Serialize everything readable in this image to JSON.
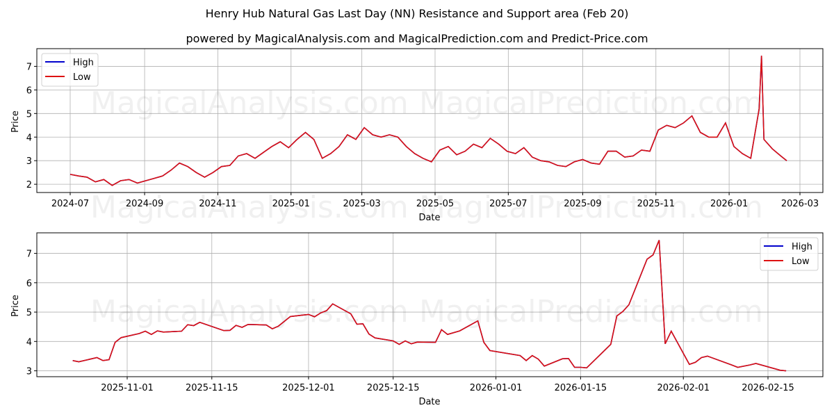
{
  "header": {
    "title": "Henry Hub Natural Gas Last Day  (NN) Resistance and Support area (Feb 20)",
    "subtitle": "powered by MagicalAnalysis.com and MagicalPrediction.com and Predict-Price.com"
  },
  "watermarks": [
    "MagicalAnalysis.com",
    "MagicalPrediction.com"
  ],
  "colors": {
    "high": "#0000cc",
    "low": "#dd1111",
    "grid": "#b0b0b0"
  },
  "chart_data": [
    {
      "type": "line",
      "title": "",
      "xlabel": "Date",
      "ylabel": "Price",
      "ylim": [
        1.65,
        7.75
      ],
      "yticks": [
        2,
        3,
        4,
        5,
        6,
        7
      ],
      "xticks": [
        "2024-07",
        "2024-09",
        "2024-11",
        "2025-01",
        "2025-03",
        "2025-05",
        "2025-07",
        "2025-09",
        "2025-11",
        "2026-01",
        "2026-03"
      ],
      "grid": true,
      "legend": {
        "position": "upper left",
        "entries": [
          "High",
          "Low"
        ]
      },
      "x": [
        "2024-07-01",
        "2024-07-08",
        "2024-07-15",
        "2024-07-22",
        "2024-07-29",
        "2024-08-05",
        "2024-08-12",
        "2024-08-19",
        "2024-08-26",
        "2024-09-02",
        "2024-09-09",
        "2024-09-16",
        "2024-09-23",
        "2024-09-30",
        "2024-10-07",
        "2024-10-14",
        "2024-10-21",
        "2024-10-28",
        "2024-11-04",
        "2024-11-11",
        "2024-11-18",
        "2024-11-25",
        "2024-12-02",
        "2024-12-09",
        "2024-12-16",
        "2024-12-23",
        "2024-12-30",
        "2025-01-06",
        "2025-01-13",
        "2025-01-20",
        "2025-01-27",
        "2025-02-03",
        "2025-02-10",
        "2025-02-17",
        "2025-02-24",
        "2025-03-03",
        "2025-03-10",
        "2025-03-17",
        "2025-03-24",
        "2025-03-31",
        "2025-04-07",
        "2025-04-14",
        "2025-04-21",
        "2025-04-28",
        "2025-05-05",
        "2025-05-12",
        "2025-05-19",
        "2025-05-26",
        "2025-06-02",
        "2025-06-09",
        "2025-06-16",
        "2025-06-23",
        "2025-06-30",
        "2025-07-07",
        "2025-07-14",
        "2025-07-21",
        "2025-07-28",
        "2025-08-04",
        "2025-08-11",
        "2025-08-18",
        "2025-08-25",
        "2025-09-01",
        "2025-09-08",
        "2025-09-15",
        "2025-09-22",
        "2025-09-29",
        "2025-10-06",
        "2025-10-13",
        "2025-10-20",
        "2025-10-27",
        "2025-11-03",
        "2025-11-10",
        "2025-11-17",
        "2025-11-24",
        "2025-12-01",
        "2025-12-08",
        "2025-12-15",
        "2025-12-22",
        "2025-12-29",
        "2026-01-05",
        "2026-01-12",
        "2026-01-19",
        "2026-01-26",
        "2026-01-28",
        "2026-01-30",
        "2026-02-06",
        "2026-02-13",
        "2026-02-18"
      ],
      "series": [
        {
          "name": "High",
          "values": [
            2.42,
            2.35,
            2.3,
            2.1,
            2.2,
            1.95,
            2.15,
            2.2,
            2.05,
            2.15,
            2.25,
            2.35,
            2.6,
            2.9,
            2.75,
            2.5,
            2.3,
            2.5,
            2.75,
            2.8,
            3.2,
            3.3,
            3.1,
            3.35,
            3.6,
            3.8,
            3.55,
            3.9,
            4.2,
            3.9,
            3.1,
            3.3,
            3.6,
            4.1,
            3.9,
            4.4,
            4.1,
            4.0,
            4.1,
            4.0,
            3.6,
            3.3,
            3.1,
            2.95,
            3.45,
            3.6,
            3.25,
            3.4,
            3.7,
            3.55,
            3.95,
            3.7,
            3.4,
            3.3,
            3.55,
            3.15,
            3.0,
            2.95,
            2.8,
            2.75,
            2.95,
            3.05,
            2.9,
            2.85,
            3.4,
            3.4,
            3.15,
            3.2,
            3.45,
            3.4,
            4.3,
            4.5,
            4.4,
            4.6,
            4.9,
            4.2,
            4.0,
            4.0,
            4.6,
            3.6,
            3.3,
            3.1,
            5.2,
            7.45,
            3.9,
            3.5,
            3.2,
            3.0
          ]
        },
        {
          "name": "Low",
          "values": [
            2.42,
            2.35,
            2.3,
            2.1,
            2.2,
            1.95,
            2.15,
            2.2,
            2.05,
            2.15,
            2.25,
            2.35,
            2.6,
            2.9,
            2.75,
            2.5,
            2.3,
            2.5,
            2.75,
            2.8,
            3.2,
            3.3,
            3.1,
            3.35,
            3.6,
            3.8,
            3.55,
            3.9,
            4.2,
            3.9,
            3.1,
            3.3,
            3.6,
            4.1,
            3.9,
            4.4,
            4.1,
            4.0,
            4.1,
            4.0,
            3.6,
            3.3,
            3.1,
            2.95,
            3.45,
            3.6,
            3.25,
            3.4,
            3.7,
            3.55,
            3.95,
            3.7,
            3.4,
            3.3,
            3.55,
            3.15,
            3.0,
            2.95,
            2.8,
            2.75,
            2.95,
            3.05,
            2.9,
            2.85,
            3.4,
            3.4,
            3.15,
            3.2,
            3.45,
            3.4,
            4.3,
            4.5,
            4.4,
            4.6,
            4.9,
            4.2,
            4.0,
            4.0,
            4.6,
            3.6,
            3.3,
            3.1,
            5.2,
            7.45,
            3.9,
            3.5,
            3.2,
            3.0
          ]
        }
      ]
    },
    {
      "type": "line",
      "title": "",
      "xlabel": "Date",
      "ylabel": "Price",
      "ylim": [
        2.8,
        7.7
      ],
      "yticks": [
        3,
        4,
        5,
        6,
        7
      ],
      "xticks": [
        "2025-11-01",
        "2025-11-15",
        "2025-12-01",
        "2025-12-15",
        "2026-01-01",
        "2026-01-15",
        "2026-02-01",
        "2026-02-15"
      ],
      "grid": true,
      "legend": {
        "position": "upper right",
        "entries": [
          "High",
          "Low"
        ]
      },
      "x": [
        "2025-10-23",
        "2025-10-24",
        "2025-10-27",
        "2025-10-28",
        "2025-10-29",
        "2025-10-30",
        "2025-10-31",
        "2025-11-03",
        "2025-11-04",
        "2025-11-05",
        "2025-11-06",
        "2025-11-07",
        "2025-11-10",
        "2025-11-11",
        "2025-11-12",
        "2025-11-13",
        "2025-11-17",
        "2025-11-18",
        "2025-11-19",
        "2025-11-20",
        "2025-11-21",
        "2025-11-24",
        "2025-11-25",
        "2025-11-26",
        "2025-11-28",
        "2025-12-01",
        "2025-12-02",
        "2025-12-03",
        "2025-12-04",
        "2025-12-05",
        "2025-12-08",
        "2025-12-09",
        "2025-12-10",
        "2025-12-11",
        "2025-12-12",
        "2025-12-15",
        "2025-12-16",
        "2025-12-17",
        "2025-12-18",
        "2025-12-19",
        "2025-12-22",
        "2025-12-23",
        "2025-12-24",
        "2025-12-26",
        "2025-12-29",
        "2025-12-30",
        "2025-12-31",
        "2026-01-05",
        "2026-01-06",
        "2026-01-07",
        "2026-01-08",
        "2026-01-09",
        "2026-01-12",
        "2026-01-13",
        "2026-01-14",
        "2026-01-15",
        "2026-01-16",
        "2026-01-20",
        "2026-01-21",
        "2026-01-22",
        "2026-01-23",
        "2026-01-26",
        "2026-01-27",
        "2026-01-28",
        "2026-01-29",
        "2026-01-30",
        "2026-02-02",
        "2026-02-03",
        "2026-02-04",
        "2026-02-05",
        "2026-02-09",
        "2026-02-10",
        "2026-02-12",
        "2026-02-13",
        "2026-02-17",
        "2026-02-18"
      ],
      "series": [
        {
          "name": "High",
          "values": [
            3.35,
            3.31,
            3.45,
            3.35,
            3.38,
            3.97,
            4.13,
            4.27,
            4.35,
            4.24,
            4.36,
            4.32,
            4.35,
            4.57,
            4.54,
            4.65,
            4.37,
            4.38,
            4.55,
            4.48,
            4.58,
            4.56,
            4.43,
            4.52,
            4.85,
            4.92,
            4.84,
            4.97,
            5.05,
            5.28,
            4.94,
            4.59,
            4.6,
            4.25,
            4.12,
            4.02,
            3.9,
            4.02,
            3.92,
            3.98,
            3.97,
            4.4,
            4.24,
            4.36,
            4.7,
            3.97,
            3.69,
            3.52,
            3.35,
            3.52,
            3.4,
            3.16,
            3.41,
            3.42,
            3.12,
            3.12,
            3.1,
            3.9,
            4.87,
            5.02,
            5.25,
            6.8,
            6.95,
            7.45,
            3.92,
            4.35,
            3.22,
            3.29,
            3.45,
            3.5,
            3.2,
            3.12,
            3.2,
            3.25,
            3.02,
            3.0
          ]
        },
        {
          "name": "Low",
          "values": [
            3.35,
            3.31,
            3.45,
            3.35,
            3.38,
            3.97,
            4.13,
            4.27,
            4.35,
            4.24,
            4.36,
            4.32,
            4.35,
            4.57,
            4.54,
            4.65,
            4.37,
            4.38,
            4.55,
            4.48,
            4.58,
            4.56,
            4.43,
            4.52,
            4.85,
            4.92,
            4.84,
            4.97,
            5.05,
            5.28,
            4.94,
            4.59,
            4.6,
            4.25,
            4.12,
            4.02,
            3.9,
            4.02,
            3.92,
            3.98,
            3.97,
            4.4,
            4.24,
            4.36,
            4.7,
            3.97,
            3.69,
            3.52,
            3.35,
            3.52,
            3.4,
            3.16,
            3.41,
            3.42,
            3.12,
            3.12,
            3.1,
            3.9,
            4.87,
            5.02,
            5.25,
            6.8,
            6.95,
            7.45,
            3.92,
            4.35,
            3.22,
            3.29,
            3.45,
            3.5,
            3.2,
            3.12,
            3.2,
            3.25,
            3.02,
            3.0
          ]
        }
      ]
    }
  ]
}
